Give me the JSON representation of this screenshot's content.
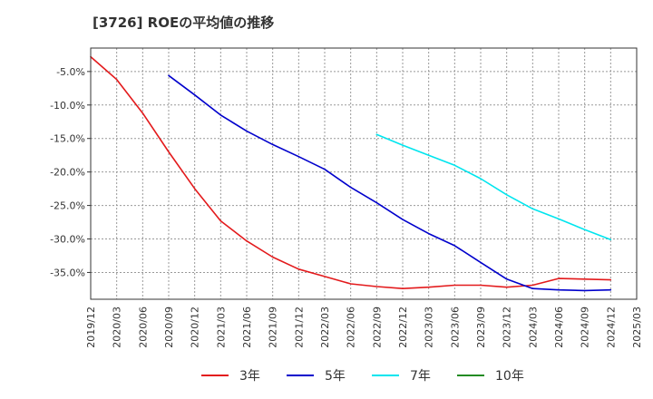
{
  "chart_data": {
    "type": "line",
    "title": "[3726]  ROEの平均値の推移",
    "xlabel": "",
    "ylabel": "",
    "ylim": [
      -39,
      -1.5
    ],
    "yticks": [
      -5,
      -10,
      -15,
      -20,
      -25,
      -30,
      -35
    ],
    "ytick_labels": [
      "-5.0%",
      "-10.0%",
      "-15.0%",
      "-20.0%",
      "-25.0%",
      "-30.0%",
      "-35.0%"
    ],
    "xlim": [
      "2019/12",
      "2025/03"
    ],
    "xtick_labels": [
      "2019/12",
      "2020/03",
      "2020/06",
      "2020/09",
      "2020/12",
      "2021/03",
      "2021/06",
      "2021/09",
      "2021/12",
      "2022/03",
      "2022/06",
      "2022/09",
      "2022/12",
      "2023/03",
      "2023/06",
      "2023/09",
      "2023/12",
      "2024/03",
      "2024/06",
      "2024/09",
      "2024/12",
      "2025/03"
    ],
    "grid": true,
    "legend_position": "bottom",
    "series": [
      {
        "name": "3年",
        "color": "#e31a1c",
        "x": [
          "2019/12",
          "2020/03",
          "2020/06",
          "2020/09",
          "2020/12",
          "2021/03",
          "2021/06",
          "2021/09",
          "2021/12",
          "2022/03",
          "2022/06",
          "2022/09",
          "2022/12",
          "2023/03",
          "2023/06",
          "2023/09",
          "2023/12",
          "2024/03",
          "2024/06",
          "2024/09",
          "2024/12"
        ],
        "values": [
          -2.8,
          -6.2,
          -11.2,
          -17.0,
          -22.5,
          -27.3,
          -30.3,
          -32.7,
          -34.5,
          -35.6,
          -36.7,
          -37.1,
          -37.4,
          -37.2,
          -36.9,
          -36.9,
          -37.2,
          -36.9,
          -35.9,
          -36.0,
          -36.1
        ]
      },
      {
        "name": "5年",
        "color": "#0000cc",
        "x": [
          "2020/09",
          "2020/12",
          "2021/03",
          "2021/06",
          "2021/09",
          "2021/12",
          "2022/03",
          "2022/06",
          "2022/09",
          "2022/12",
          "2023/03",
          "2023/06",
          "2023/09",
          "2023/12",
          "2024/03",
          "2024/06",
          "2024/09",
          "2024/12"
        ],
        "values": [
          -5.6,
          -8.5,
          -11.5,
          -13.9,
          -15.9,
          -17.7,
          -19.6,
          -22.3,
          -24.6,
          -27.1,
          -29.2,
          -31.0,
          -33.5,
          -36.0,
          -37.4,
          -37.6,
          -37.7,
          -37.6
        ]
      },
      {
        "name": "7年",
        "color": "#00e5ee",
        "x": [
          "2022/09",
          "2022/12",
          "2023/03",
          "2023/06",
          "2023/09",
          "2023/12",
          "2024/03",
          "2024/06",
          "2024/09",
          "2024/12"
        ],
        "values": [
          -14.4,
          -16.0,
          -17.5,
          -19.0,
          -21.0,
          -23.4,
          -25.5,
          -27.0,
          -28.6,
          -30.1
        ]
      },
      {
        "name": "10年",
        "color": "#228b22",
        "x": [],
        "values": []
      }
    ]
  }
}
